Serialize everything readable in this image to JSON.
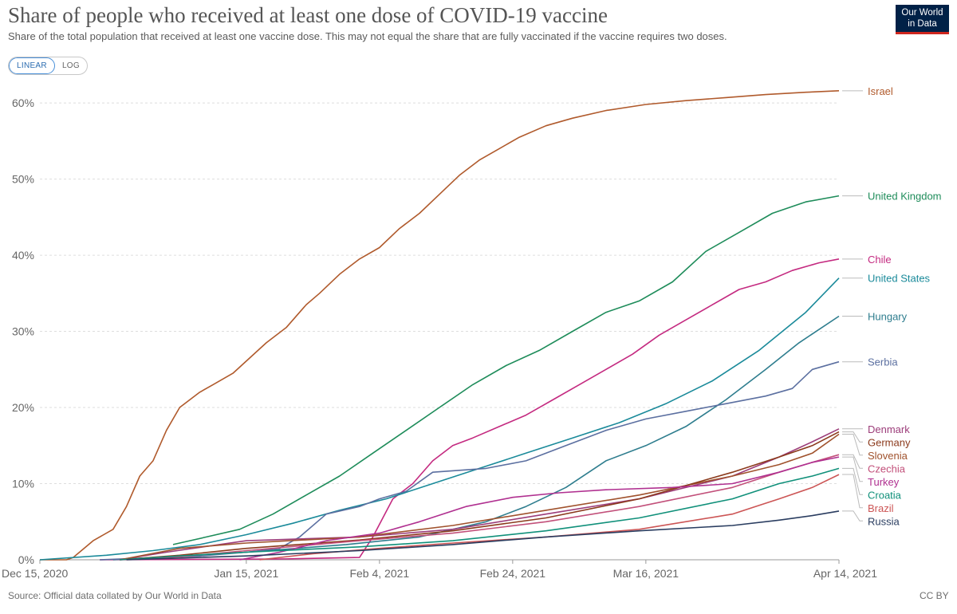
{
  "header": {
    "title": "Share of people who received at least one dose of COVID-19 vaccine",
    "subtitle": "Share of the total population that received at least one vaccine dose. This may not equal the share that are fully vaccinated if the vaccine requires two doses.",
    "logo_line1": "Our World",
    "logo_line2": "in Data"
  },
  "controls": {
    "linear_label": "LINEAR",
    "log_label": "LOG",
    "selected": "LINEAR"
  },
  "footer": {
    "source": "Source: Official data collated by Our World in Data",
    "license": "CC BY"
  },
  "colors": {
    "Israel": "#b05a2c",
    "United Kingdom": "#1e8c5a",
    "Chile": "#c42a80",
    "United States": "#1a8a9a",
    "Hungary": "#2e7d8e",
    "Serbia": "#5b6fa0",
    "Denmark": "#9c3d7a",
    "Slovenia": "#a0522d",
    "Germany": "#8b3a1c",
    "Czechia": "#c2507a",
    "Turkey": "#b03090",
    "Croatia": "#10907a",
    "Brazil": "#cc5555",
    "Russia": "#2a3d60"
  },
  "chart_data": {
    "type": "line",
    "title": "Share of people who received at least one dose of COVID-19 vaccine",
    "x_axis": {
      "type": "date",
      "range": [
        "2020-12-15",
        "2021-04-14"
      ],
      "tick_labels": [
        "Dec 15, 2020",
        "Jan 15, 2021",
        "Feb 4, 2021",
        "Feb 24, 2021",
        "Mar 16, 2021",
        "Apr 14, 2021"
      ],
      "tick_dates": [
        "2020-12-15",
        "2021-01-15",
        "2021-02-04",
        "2021-02-24",
        "2021-03-16",
        "2021-04-14"
      ]
    },
    "y_axis": {
      "range": [
        0,
        62
      ],
      "ticks": [
        0,
        10,
        20,
        30,
        40,
        50,
        60
      ],
      "tick_labels": [
        "0%",
        "10%",
        "20%",
        "30%",
        "40%",
        "50%",
        "60%"
      ],
      "unit": "%"
    },
    "grid": "horizontal dashed",
    "legend": "line labels at right end",
    "series": [
      {
        "name": "Israel",
        "points": [
          [
            "2020-12-15",
            0
          ],
          [
            "2020-12-19",
            0
          ],
          [
            "2020-12-20",
            0.3
          ],
          [
            "2020-12-23",
            2.5
          ],
          [
            "2020-12-26",
            4
          ],
          [
            "2020-12-28",
            7
          ],
          [
            "2020-12-30",
            11
          ],
          [
            "2021-01-01",
            13
          ],
          [
            "2021-01-03",
            17
          ],
          [
            "2021-01-05",
            20
          ],
          [
            "2021-01-08",
            22
          ],
          [
            "2021-01-10",
            23
          ],
          [
            "2021-01-13",
            24.5
          ],
          [
            "2021-01-18",
            28.5
          ],
          [
            "2021-01-21",
            30.5
          ],
          [
            "2021-01-24",
            33.5
          ],
          [
            "2021-01-26",
            35
          ],
          [
            "2021-01-29",
            37.5
          ],
          [
            "2021-02-01",
            39.5
          ],
          [
            "2021-02-04",
            41
          ],
          [
            "2021-02-07",
            43.5
          ],
          [
            "2021-02-10",
            45.5
          ],
          [
            "2021-02-13",
            48
          ],
          [
            "2021-02-16",
            50.5
          ],
          [
            "2021-02-19",
            52.5
          ],
          [
            "2021-02-22",
            54
          ],
          [
            "2021-02-25",
            55.5
          ],
          [
            "2021-03-01",
            57
          ],
          [
            "2021-03-05",
            58
          ],
          [
            "2021-03-10",
            59
          ],
          [
            "2021-03-16",
            59.8
          ],
          [
            "2021-03-22",
            60.3
          ],
          [
            "2021-03-28",
            60.7
          ],
          [
            "2021-04-03",
            61.1
          ],
          [
            "2021-04-09",
            61.4
          ],
          [
            "2021-04-14",
            61.6
          ]
        ]
      },
      {
        "name": "United Kingdom",
        "points": [
          [
            "2021-01-04",
            2
          ],
          [
            "2021-01-09",
            3
          ],
          [
            "2021-01-14",
            4
          ],
          [
            "2021-01-19",
            6
          ],
          [
            "2021-01-24",
            8.5
          ],
          [
            "2021-01-29",
            11
          ],
          [
            "2021-02-03",
            14
          ],
          [
            "2021-02-08",
            17
          ],
          [
            "2021-02-13",
            20
          ],
          [
            "2021-02-18",
            23
          ],
          [
            "2021-02-23",
            25.5
          ],
          [
            "2021-02-28",
            27.5
          ],
          [
            "2021-03-05",
            30
          ],
          [
            "2021-03-10",
            32.5
          ],
          [
            "2021-03-15",
            34
          ],
          [
            "2021-03-20",
            36.5
          ],
          [
            "2021-03-25",
            40.5
          ],
          [
            "2021-03-30",
            43
          ],
          [
            "2021-04-04",
            45.5
          ],
          [
            "2021-04-09",
            47
          ],
          [
            "2021-04-14",
            47.8
          ]
        ]
      },
      {
        "name": "Chile",
        "points": [
          [
            "2020-12-24",
            0
          ],
          [
            "2021-01-20",
            0.1
          ],
          [
            "2021-02-01",
            0.3
          ],
          [
            "2021-02-03",
            3
          ],
          [
            "2021-02-06",
            8
          ],
          [
            "2021-02-09",
            10
          ],
          [
            "2021-02-12",
            13
          ],
          [
            "2021-02-15",
            15
          ],
          [
            "2021-02-18",
            16
          ],
          [
            "2021-02-22",
            17.5
          ],
          [
            "2021-02-26",
            19
          ],
          [
            "2021-03-02",
            21
          ],
          [
            "2021-03-06",
            23
          ],
          [
            "2021-03-10",
            25
          ],
          [
            "2021-03-14",
            27
          ],
          [
            "2021-03-18",
            29.5
          ],
          [
            "2021-03-22",
            31.5
          ],
          [
            "2021-03-26",
            33.5
          ],
          [
            "2021-03-30",
            35.5
          ],
          [
            "2021-04-03",
            36.5
          ],
          [
            "2021-04-07",
            38
          ],
          [
            "2021-04-11",
            39
          ],
          [
            "2021-04-14",
            39.5
          ]
        ]
      },
      {
        "name": "United States",
        "points": [
          [
            "2020-12-15",
            0
          ],
          [
            "2020-12-25",
            0.6
          ],
          [
            "2021-01-01",
            1.2
          ],
          [
            "2021-01-08",
            2
          ],
          [
            "2021-01-15",
            3.3
          ],
          [
            "2021-01-22",
            4.8
          ],
          [
            "2021-01-29",
            6.5
          ],
          [
            "2021-02-05",
            8
          ],
          [
            "2021-02-12",
            10
          ],
          [
            "2021-02-19",
            12
          ],
          [
            "2021-02-26",
            14
          ],
          [
            "2021-03-05",
            16
          ],
          [
            "2021-03-12",
            18
          ],
          [
            "2021-03-19",
            20.5
          ],
          [
            "2021-03-26",
            23.5
          ],
          [
            "2021-04-02",
            27.5
          ],
          [
            "2021-04-09",
            32.5
          ],
          [
            "2021-04-14",
            37
          ]
        ]
      },
      {
        "name": "Hungary",
        "points": [
          [
            "2020-12-26",
            0
          ],
          [
            "2021-01-15",
            1
          ],
          [
            "2021-01-30",
            2
          ],
          [
            "2021-02-10",
            3
          ],
          [
            "2021-02-20",
            5
          ],
          [
            "2021-02-26",
            7
          ],
          [
            "2021-03-04",
            9.5
          ],
          [
            "2021-03-10",
            13
          ],
          [
            "2021-03-16",
            15
          ],
          [
            "2021-03-22",
            17.5
          ],
          [
            "2021-03-28",
            21
          ],
          [
            "2021-04-03",
            25
          ],
          [
            "2021-04-08",
            28.5
          ],
          [
            "2021-04-14",
            32
          ]
        ]
      },
      {
        "name": "Serbia",
        "points": [
          [
            "2020-12-24",
            0
          ],
          [
            "2021-01-08",
            0.5
          ],
          [
            "2021-01-15",
            1
          ],
          [
            "2021-01-20",
            1.5
          ],
          [
            "2021-01-23",
            3
          ],
          [
            "2021-01-27",
            6
          ],
          [
            "2021-02-01",
            7
          ],
          [
            "2021-02-04",
            8
          ],
          [
            "2021-02-08",
            9
          ],
          [
            "2021-02-12",
            11.5
          ],
          [
            "2021-02-20",
            12
          ],
          [
            "2021-02-26",
            13
          ],
          [
            "2021-03-04",
            15
          ],
          [
            "2021-03-10",
            17
          ],
          [
            "2021-03-16",
            18.5
          ],
          [
            "2021-03-22",
            19.5
          ],
          [
            "2021-03-28",
            20.5
          ],
          [
            "2021-04-03",
            21.5
          ],
          [
            "2021-04-07",
            22.5
          ],
          [
            "2021-04-10",
            25
          ],
          [
            "2021-04-14",
            26
          ]
        ]
      },
      {
        "name": "Denmark",
        "points": [
          [
            "2020-12-27",
            0
          ],
          [
            "2021-01-03",
            1
          ],
          [
            "2021-01-15",
            2.5
          ],
          [
            "2021-02-01",
            3
          ],
          [
            "2021-02-15",
            4
          ],
          [
            "2021-03-01",
            6
          ],
          [
            "2021-03-15",
            8
          ],
          [
            "2021-03-29",
            11
          ],
          [
            "2021-04-05",
            13.5
          ],
          [
            "2021-04-10",
            15.5
          ],
          [
            "2021-04-14",
            17.2
          ]
        ]
      },
      {
        "name": "Slovenia",
        "points": [
          [
            "2020-12-27",
            0
          ],
          [
            "2021-01-05",
            1.5
          ],
          [
            "2021-01-15",
            2.2
          ],
          [
            "2021-02-01",
            3
          ],
          [
            "2021-02-15",
            4.5
          ],
          [
            "2021-03-01",
            6.5
          ],
          [
            "2021-03-15",
            8.5
          ],
          [
            "2021-03-29",
            11
          ],
          [
            "2021-04-05",
            12.5
          ],
          [
            "2021-04-10",
            14
          ],
          [
            "2021-04-14",
            16.5
          ]
        ]
      },
      {
        "name": "Germany",
        "points": [
          [
            "2020-12-27",
            0
          ],
          [
            "2021-01-05",
            0.6
          ],
          [
            "2021-01-15",
            1.5
          ],
          [
            "2021-02-01",
            2.6
          ],
          [
            "2021-02-15",
            3.8
          ],
          [
            "2021-03-01",
            5.5
          ],
          [
            "2021-03-15",
            8
          ],
          [
            "2021-03-29",
            11.5
          ],
          [
            "2021-04-05",
            13.5
          ],
          [
            "2021-04-10",
            15
          ],
          [
            "2021-04-14",
            16.8
          ]
        ]
      },
      {
        "name": "Czechia",
        "points": [
          [
            "2020-12-27",
            0
          ],
          [
            "2021-01-05",
            0.4
          ],
          [
            "2021-01-15",
            1.2
          ],
          [
            "2021-02-01",
            2.5
          ],
          [
            "2021-02-15",
            3.5
          ],
          [
            "2021-03-01",
            5
          ],
          [
            "2021-03-15",
            7
          ],
          [
            "2021-03-29",
            9.5
          ],
          [
            "2021-04-05",
            11.5
          ],
          [
            "2021-04-10",
            12.8
          ],
          [
            "2021-04-14",
            13.8
          ]
        ]
      },
      {
        "name": "Turkey",
        "points": [
          [
            "2021-01-14",
            0
          ],
          [
            "2021-01-20",
            1
          ],
          [
            "2021-01-27",
            2.5
          ],
          [
            "2021-02-04",
            3.5
          ],
          [
            "2021-02-10",
            5
          ],
          [
            "2021-02-17",
            7
          ],
          [
            "2021-02-24",
            8.2
          ],
          [
            "2021-03-03",
            8.8
          ],
          [
            "2021-03-10",
            9.2
          ],
          [
            "2021-03-20",
            9.5
          ],
          [
            "2021-03-29",
            10
          ],
          [
            "2021-04-05",
            11.5
          ],
          [
            "2021-04-10",
            12.8
          ],
          [
            "2021-04-14",
            13.5
          ]
        ]
      },
      {
        "name": "Croatia",
        "points": [
          [
            "2020-12-27",
            0
          ],
          [
            "2021-01-05",
            0.5
          ],
          [
            "2021-01-15",
            1
          ],
          [
            "2021-02-01",
            1.7
          ],
          [
            "2021-02-15",
            2.5
          ],
          [
            "2021-03-01",
            3.8
          ],
          [
            "2021-03-15",
            5.5
          ],
          [
            "2021-03-29",
            8
          ],
          [
            "2021-04-05",
            10
          ],
          [
            "2021-04-10",
            11
          ],
          [
            "2021-04-14",
            12
          ]
        ]
      },
      {
        "name": "Brazil",
        "points": [
          [
            "2021-01-17",
            0
          ],
          [
            "2021-01-25",
            0.8
          ],
          [
            "2021-02-04",
            1.5
          ],
          [
            "2021-02-15",
            2.2
          ],
          [
            "2021-03-01",
            3
          ],
          [
            "2021-03-15",
            4
          ],
          [
            "2021-03-29",
            6
          ],
          [
            "2021-04-05",
            8
          ],
          [
            "2021-04-10",
            9.5
          ],
          [
            "2021-04-14",
            11.2
          ]
        ]
      },
      {
        "name": "Russia",
        "points": [
          [
            "2020-12-28",
            0
          ],
          [
            "2021-01-15",
            0.5
          ],
          [
            "2021-02-01",
            1.2
          ],
          [
            "2021-02-15",
            2
          ],
          [
            "2021-03-01",
            3
          ],
          [
            "2021-03-15",
            3.8
          ],
          [
            "2021-03-29",
            4.5
          ],
          [
            "2021-04-05",
            5.2
          ],
          [
            "2021-04-10",
            5.8
          ],
          [
            "2021-04-14",
            6.4
          ]
        ]
      }
    ]
  }
}
